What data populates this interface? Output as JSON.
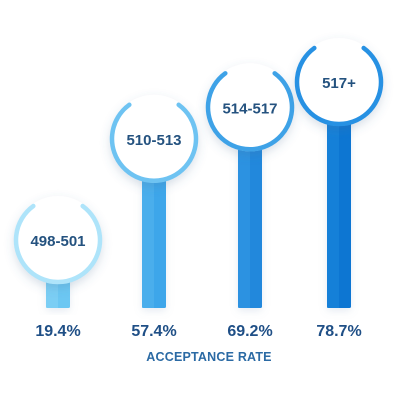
{
  "chart_data": {
    "type": "bar",
    "categories": [
      "498-501",
      "510-513",
      "514-517",
      "517+"
    ],
    "values": [
      19.4,
      57.4,
      69.2,
      78.7
    ],
    "value_labels": [
      "19.4%",
      "57.4%",
      "69.2%",
      "78.7%"
    ],
    "xlabel": "ACCEPTANCE RATE",
    "ylabel": "",
    "title": "",
    "ylim": [
      0,
      100
    ],
    "grid": false,
    "colors": {
      "bar_light": [
        "#8fd8f7",
        "#5ab8ef",
        "#3a9fe6",
        "#1f8ee0"
      ],
      "bar_dark": [
        "#6cc7f2",
        "#3ea6ea",
        "#2488dc",
        "#0f76d2"
      ],
      "ring": [
        "#aee4fa",
        "#6ec3f2",
        "#3ea2e7",
        "#2791e3"
      ],
      "value_text": "#1f4f86",
      "label_text": "#24527f",
      "axis_label_text": "#2b6aa4"
    }
  }
}
